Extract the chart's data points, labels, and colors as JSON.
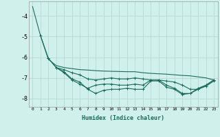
{
  "xlabel": "Humidex (Indice chaleur)",
  "background_color": "#cff0eb",
  "grid_color": "#b8d8d4",
  "line_color": "#1a6b5a",
  "xlim": [
    -0.5,
    23.5
  ],
  "ylim": [
    -8.4,
    -3.3
  ],
  "yticks": [
    -8,
    -7,
    -6,
    -5,
    -4
  ],
  "xticks": [
    0,
    1,
    2,
    3,
    4,
    5,
    6,
    7,
    8,
    9,
    10,
    11,
    12,
    13,
    14,
    15,
    16,
    17,
    18,
    19,
    20,
    21,
    22,
    23
  ],
  "series": [
    {
      "x": [
        0,
        1,
        2,
        3,
        4,
        5,
        6,
        7,
        8,
        9,
        10,
        11,
        12,
        13,
        14,
        15,
        16,
        17,
        18,
        19,
        20,
        21,
        22,
        23
      ],
      "y": [
        -3.55,
        -4.95,
        -6.1,
        -6.4,
        -6.5,
        -6.55,
        -6.6,
        -6.62,
        -6.65,
        -6.67,
        -6.68,
        -6.69,
        -6.7,
        -6.7,
        -6.75,
        -6.78,
        -6.8,
        -6.82,
        -6.85,
        -6.88,
        -6.9,
        -6.95,
        -7.0,
        -7.1
      ],
      "marker": false
    },
    {
      "x": [
        1,
        2,
        3,
        4,
        5,
        6,
        7,
        8,
        9,
        10,
        11,
        12,
        13,
        14,
        15,
        16,
        17,
        18,
        19,
        20,
        21,
        22,
        23
      ],
      "y": [
        -4.95,
        -6.05,
        -6.5,
        -6.6,
        -6.75,
        -6.85,
        -7.05,
        -7.1,
        -7.05,
        -7.0,
        -7.05,
        -7.05,
        -7.0,
        -7.05,
        -7.1,
        -7.1,
        -7.15,
        -7.2,
        -7.35,
        -7.55,
        -7.55,
        -7.4,
        -7.15
      ],
      "marker": true
    },
    {
      "x": [
        2,
        3,
        4,
        5,
        6,
        7,
        8,
        9,
        10,
        11,
        12,
        13,
        14,
        15,
        16,
        17,
        18,
        19,
        20,
        21,
        22,
        23
      ],
      "y": [
        -6.05,
        -6.5,
        -6.75,
        -7.1,
        -7.3,
        -7.5,
        -7.35,
        -7.3,
        -7.3,
        -7.35,
        -7.35,
        -7.3,
        -7.35,
        -7.1,
        -7.1,
        -7.35,
        -7.5,
        -7.75,
        -7.75,
        -7.5,
        -7.35,
        -7.1
      ],
      "marker": true
    },
    {
      "x": [
        3,
        4,
        5,
        6,
        7,
        8,
        9,
        10,
        11,
        12,
        13,
        14,
        15,
        16,
        17,
        18,
        19,
        20,
        21,
        22,
        23
      ],
      "y": [
        -6.5,
        -6.7,
        -7.05,
        -7.2,
        -7.55,
        -7.75,
        -7.6,
        -7.55,
        -7.55,
        -7.5,
        -7.55,
        -7.55,
        -7.15,
        -7.15,
        -7.45,
        -7.55,
        -7.8,
        -7.75,
        -7.55,
        -7.35,
        -7.1
      ],
      "marker": true
    }
  ]
}
